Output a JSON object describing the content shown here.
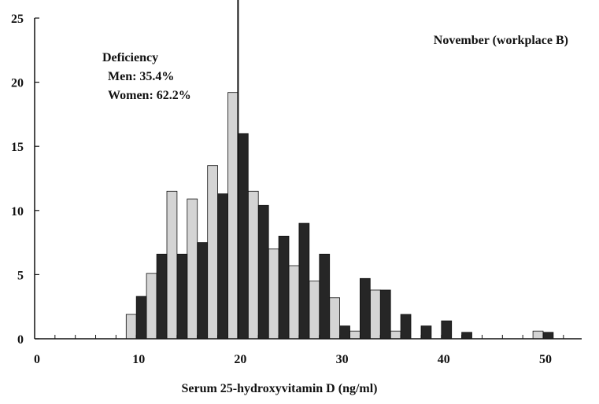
{
  "chart_data": {
    "type": "bar",
    "title": "",
    "xlabel": "Serum 25-hydroxyvitamin D (ng/ml)",
    "ylabel": "",
    "xlim": [
      0,
      53
    ],
    "ylim": [
      0,
      25
    ],
    "x_ticks": [
      0,
      10,
      20,
      30,
      40,
      50
    ],
    "y_ticks": [
      0,
      5,
      10,
      15,
      20,
      25
    ],
    "grid": false,
    "legend": "none",
    "reference_line_x": 20,
    "series": [
      {
        "color": "#d4d4d4",
        "x": [
          9.5,
          11.5,
          13.5,
          15.5,
          17.5,
          19.5,
          21.5,
          23.5,
          25.5,
          27.5,
          29.5,
          31.5,
          33.5,
          35.5,
          49.5
        ],
        "values": [
          1.9,
          5.1,
          11.5,
          10.9,
          13.5,
          19.2,
          11.5,
          7.0,
          5.7,
          4.5,
          3.2,
          0.6,
          3.8,
          0.6,
          0.6
        ]
      },
      {
        "color": "#262626",
        "x": [
          10.5,
          12.5,
          14.5,
          16.5,
          18.5,
          20.5,
          22.5,
          24.5,
          26.5,
          28.5,
          30.5,
          32.5,
          34.5,
          36.5,
          38.5,
          40.5,
          42.5,
          50.5
        ],
        "values": [
          3.3,
          6.6,
          6.6,
          7.5,
          11.3,
          16.0,
          10.4,
          8.0,
          9.0,
          6.6,
          1.0,
          4.7,
          3.8,
          1.9,
          1.0,
          1.4,
          0.5,
          0.5
        ]
      }
    ],
    "annotations": {
      "panel_label": "November (workplace B)",
      "deficiency_title": "Deficiency",
      "deficiency_men": "Men: 35.4%",
      "deficiency_women": "Women: 62.2%"
    }
  }
}
